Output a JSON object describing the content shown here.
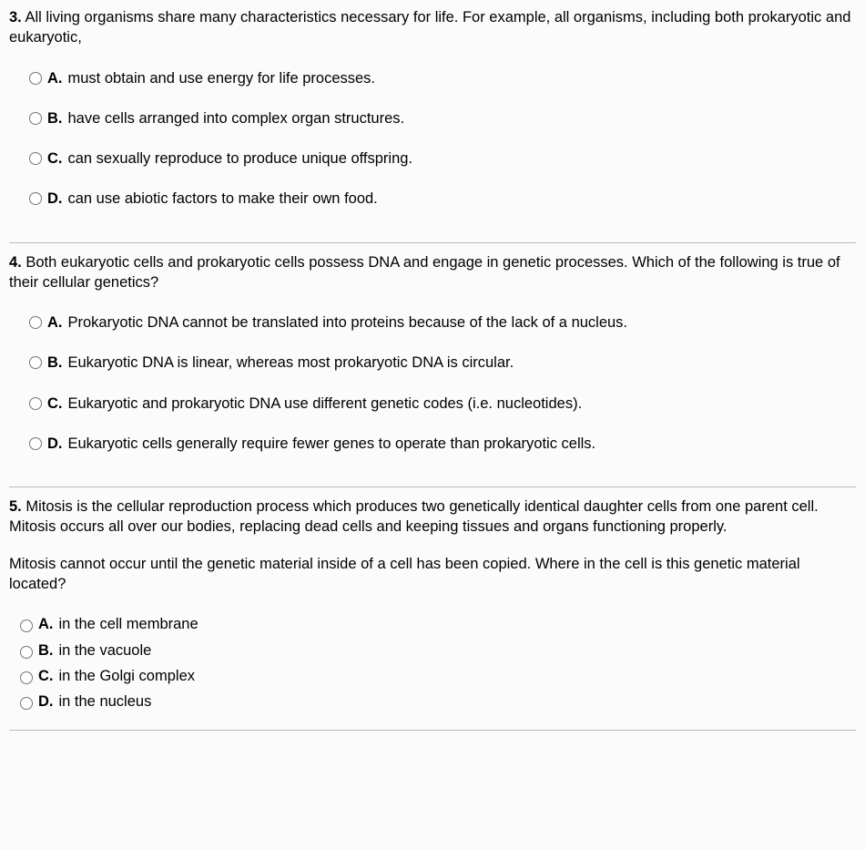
{
  "questions": [
    {
      "number": "3.",
      "prompt_paragraphs": [
        "All living organisms share many characteristics necessary for life. For example, all organisms, including both prokaryotic and eukaryotic,"
      ],
      "options_style": "stacked",
      "options": [
        {
          "letter": "A.",
          "text": "must obtain and use energy for life processes."
        },
        {
          "letter": "B.",
          "text": "have cells arranged into complex organ structures."
        },
        {
          "letter": "C.",
          "text": "can sexually reproduce to produce unique offspring."
        },
        {
          "letter": "D.",
          "text": "can use abiotic factors to make their own food."
        }
      ]
    },
    {
      "number": "4.",
      "prompt_paragraphs": [
        "Both eukaryotic cells and prokaryotic cells possess DNA and engage in genetic processes. Which of the following is true of their cellular genetics?"
      ],
      "options_style": "stacked",
      "options": [
        {
          "letter": "A.",
          "text": "Prokaryotic DNA cannot be translated into proteins because of the lack of a nucleus."
        },
        {
          "letter": "B.",
          "text": "Eukaryotic DNA is linear, whereas most prokaryotic DNA is circular."
        },
        {
          "letter": "C.",
          "text": "Eukaryotic and prokaryotic DNA use different genetic codes (i.e. nucleotides)."
        },
        {
          "letter": "D.",
          "text": "Eukaryotic cells generally require fewer genes to operate than prokaryotic cells."
        }
      ]
    },
    {
      "number": "5.",
      "prompt_paragraphs": [
        "Mitosis is the cellular reproduction process which produces two genetically identical daughter cells from one parent cell. Mitosis occurs all over our bodies, replacing dead cells and keeping tissues and organs functioning properly.",
        "Mitosis cannot occur until the genetic material inside of a cell has been copied. Where in the cell is this genetic material located?"
      ],
      "options_style": "inline",
      "options": [
        {
          "letter": "A.",
          "text": "in the cell membrane"
        },
        {
          "letter": "B.",
          "text": "in the vacuole"
        },
        {
          "letter": "C.",
          "text": "in the Golgi complex"
        },
        {
          "letter": "D.",
          "text": "in the nucleus"
        }
      ]
    }
  ]
}
